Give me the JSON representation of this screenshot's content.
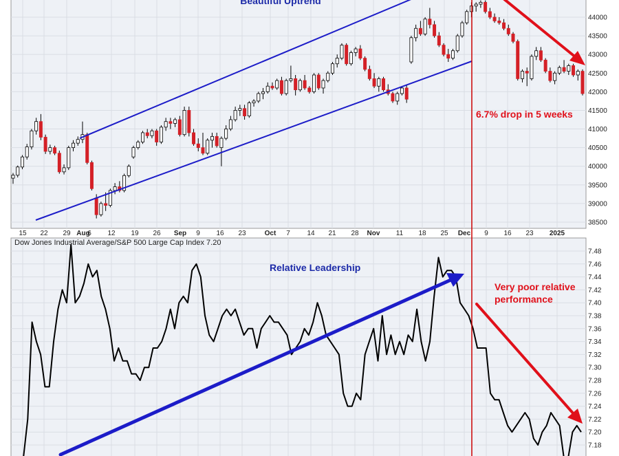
{
  "colors": {
    "up": "#ffffff",
    "down": "#d42027",
    "candle_outline": "#000000",
    "ratio_line": "#000000",
    "channel": "#1c1cc8",
    "annotation_blue": "#1c2aa8",
    "annotation_red": "#e0101a",
    "divider": "#cc0000",
    "grid": "#d9dde4",
    "panel_bg": "#eef1f6"
  },
  "chart_data": [
    {
      "type": "candlestick",
      "title": "",
      "x_tick_labels": [
        "15",
        "22",
        "29",
        "Aug",
        "6",
        "12",
        "19",
        "26",
        "Sep",
        "9",
        "16",
        "23",
        "Oct",
        "7",
        "14",
        "21",
        "28",
        "Nov",
        "11",
        "18",
        "25",
        "Dec",
        "9",
        "16",
        "23",
        "2025"
      ],
      "y_ticks": [
        38500,
        39000,
        39500,
        40000,
        40500,
        41000,
        41500,
        42000,
        42500,
        43000,
        43500,
        44000
      ],
      "ylim": [
        38300,
        44200
      ],
      "scale": "linear",
      "grid": true,
      "annotations": [
        "Beautiful Uptrend",
        "6.7% drop in 5 weeks"
      ],
      "series": [
        {
          "open": 39680,
          "high": 39820,
          "low": 39530,
          "close": 39760
        },
        {
          "open": 39760,
          "high": 40020,
          "low": 39700,
          "close": 39980
        },
        {
          "open": 39980,
          "high": 40300,
          "low": 39920,
          "close": 40250
        },
        {
          "open": 40250,
          "high": 40600,
          "low": 40180,
          "close": 40520
        },
        {
          "open": 40520,
          "high": 41000,
          "low": 40450,
          "close": 40950
        },
        {
          "open": 40950,
          "high": 41300,
          "low": 40850,
          "close": 41200
        },
        {
          "open": 41200,
          "high": 41400,
          "low": 40700,
          "close": 40780
        },
        {
          "open": 40780,
          "high": 40850,
          "low": 40330,
          "close": 40400
        },
        {
          "open": 40400,
          "high": 40580,
          "low": 40320,
          "close": 40500
        },
        {
          "open": 40500,
          "high": 40550,
          "low": 40300,
          "close": 40350
        },
        {
          "open": 40350,
          "high": 40420,
          "low": 39800,
          "close": 39850
        },
        {
          "open": 39850,
          "high": 40050,
          "low": 39780,
          "close": 39960
        },
        {
          "open": 39960,
          "high": 40550,
          "low": 39900,
          "close": 40500
        },
        {
          "open": 40500,
          "high": 40700,
          "low": 40400,
          "close": 40620
        },
        {
          "open": 40620,
          "high": 40800,
          "low": 40550,
          "close": 40720
        },
        {
          "open": 40720,
          "high": 41200,
          "low": 40620,
          "close": 40850
        },
        {
          "open": 40850,
          "high": 40900,
          "low": 40050,
          "close": 40100
        },
        {
          "open": 40100,
          "high": 40150,
          "low": 39350,
          "close": 39400
        },
        {
          "open": 39150,
          "high": 39250,
          "low": 38600,
          "close": 38700
        },
        {
          "open": 38700,
          "high": 39050,
          "low": 38650,
          "close": 39000
        },
        {
          "open": 39000,
          "high": 39300,
          "low": 38800,
          "close": 38950
        },
        {
          "open": 38950,
          "high": 39400,
          "low": 38900,
          "close": 39350
        },
        {
          "open": 39350,
          "high": 39550,
          "low": 39250,
          "close": 39450
        },
        {
          "open": 39450,
          "high": 39600,
          "low": 39300,
          "close": 39350
        },
        {
          "open": 39350,
          "high": 39800,
          "low": 39300,
          "close": 39750
        },
        {
          "open": 39750,
          "high": 40050,
          "low": 39700,
          "close": 40000
        },
        {
          "open": 40250,
          "high": 40550,
          "low": 40200,
          "close": 40500
        },
        {
          "open": 40500,
          "high": 40700,
          "low": 40450,
          "close": 40650
        },
        {
          "open": 40650,
          "high": 40950,
          "low": 40600,
          "close": 40900
        },
        {
          "open": 40900,
          "high": 41000,
          "low": 40750,
          "close": 40820
        },
        {
          "open": 40820,
          "high": 41000,
          "low": 40750,
          "close": 40950
        },
        {
          "open": 40950,
          "high": 41000,
          "low": 40550,
          "close": 40650
        },
        {
          "open": 40650,
          "high": 41100,
          "low": 40600,
          "close": 41050
        },
        {
          "open": 41050,
          "high": 41300,
          "low": 40950,
          "close": 41200
        },
        {
          "open": 41200,
          "high": 41300,
          "low": 41000,
          "close": 41150
        },
        {
          "open": 41150,
          "high": 41300,
          "low": 41050,
          "close": 41250
        },
        {
          "open": 41250,
          "high": 41350,
          "low": 40800,
          "close": 40850
        },
        {
          "open": 40850,
          "high": 41600,
          "low": 40800,
          "close": 41500
        },
        {
          "open": 41500,
          "high": 41600,
          "low": 40800,
          "close": 40900
        },
        {
          "open": 40900,
          "high": 41000,
          "low": 40550,
          "close": 40600
        },
        {
          "open": 40600,
          "high": 40750,
          "low": 40400,
          "close": 40500
        },
        {
          "open": 40500,
          "high": 40900,
          "low": 40300,
          "close": 40350
        },
        {
          "open": 40350,
          "high": 40750,
          "low": 40300,
          "close": 40700
        },
        {
          "open": 40700,
          "high": 40900,
          "low": 40500,
          "close": 40800
        },
        {
          "open": 40800,
          "high": 40900,
          "low": 40500,
          "close": 40550
        },
        {
          "open": 40500,
          "high": 40800,
          "low": 40000,
          "close": 40750
        },
        {
          "open": 40750,
          "high": 41100,
          "low": 40700,
          "close": 41000
        },
        {
          "open": 41000,
          "high": 41350,
          "low": 40950,
          "close": 41250
        },
        {
          "open": 41250,
          "high": 41600,
          "low": 41200,
          "close": 41500
        },
        {
          "open": 41500,
          "high": 41650,
          "low": 41350,
          "close": 41550
        },
        {
          "open": 41550,
          "high": 41650,
          "low": 41250,
          "close": 41350
        },
        {
          "open": 41350,
          "high": 41750,
          "low": 41300,
          "close": 41700
        },
        {
          "open": 41700,
          "high": 41800,
          "low": 41600,
          "close": 41750
        },
        {
          "open": 41750,
          "high": 42000,
          "low": 41700,
          "close": 41950
        },
        {
          "open": 41950,
          "high": 42100,
          "low": 41800,
          "close": 42000
        },
        {
          "open": 42000,
          "high": 42250,
          "low": 41950,
          "close": 42150
        },
        {
          "open": 42150,
          "high": 42250,
          "low": 42050,
          "close": 42100
        },
        {
          "open": 42100,
          "high": 42350,
          "low": 42050,
          "close": 42300
        },
        {
          "open": 42300,
          "high": 42400,
          "low": 41900,
          "close": 41950
        },
        {
          "open": 41950,
          "high": 42350,
          "low": 41900,
          "close": 42300
        },
        {
          "open": 42300,
          "high": 42700,
          "low": 42250,
          "close": 42350
        },
        {
          "open": 42350,
          "high": 42450,
          "low": 41900,
          "close": 42050
        },
        {
          "open": 42050,
          "high": 42350,
          "low": 42000,
          "close": 42300
        },
        {
          "open": 42300,
          "high": 42450,
          "low": 42050,
          "close": 42100
        },
        {
          "open": 42100,
          "high": 42150,
          "low": 41950,
          "close": 42000
        },
        {
          "open": 42000,
          "high": 42500,
          "low": 41950,
          "close": 42450
        },
        {
          "open": 42450,
          "high": 42500,
          "low": 42050,
          "close": 42100
        },
        {
          "open": 42100,
          "high": 42350,
          "low": 41950,
          "close": 42300
        },
        {
          "open": 42300,
          "high": 42550,
          "low": 42250,
          "close": 42500
        },
        {
          "open": 42500,
          "high": 42800,
          "low": 42450,
          "close": 42750
        },
        {
          "open": 42750,
          "high": 43000,
          "low": 42650,
          "close": 42900
        },
        {
          "open": 42900,
          "high": 43300,
          "low": 42850,
          "close": 43250
        },
        {
          "open": 43250,
          "high": 43300,
          "low": 42700,
          "close": 42750
        },
        {
          "open": 42750,
          "high": 43100,
          "low": 42700,
          "close": 43050
        },
        {
          "open": 43050,
          "high": 43200,
          "low": 42950,
          "close": 43150
        },
        {
          "open": 43150,
          "high": 43250,
          "low": 42850,
          "close": 42900
        },
        {
          "open": 42900,
          "high": 42950,
          "low": 42550,
          "close": 42600
        },
        {
          "open": 42600,
          "high": 42700,
          "low": 42300,
          "close": 42350
        },
        {
          "open": 42350,
          "high": 42500,
          "low": 42100,
          "close": 42150
        },
        {
          "open": 42150,
          "high": 42400,
          "low": 42000,
          "close": 42350
        },
        {
          "open": 42350,
          "high": 42400,
          "low": 42000,
          "close": 42050
        },
        {
          "open": 42050,
          "high": 42200,
          "low": 41900,
          "close": 41950
        },
        {
          "open": 41950,
          "high": 42000,
          "low": 41700,
          "close": 41750
        },
        {
          "open": 41750,
          "high": 42000,
          "low": 41650,
          "close": 41950
        },
        {
          "open": 41950,
          "high": 42150,
          "low": 41900,
          "close": 42100
        },
        {
          "open": 42100,
          "high": 42200,
          "low": 41700,
          "close": 41800
        },
        {
          "open": 42800,
          "high": 43500,
          "low": 42750,
          "close": 43450
        },
        {
          "open": 43450,
          "high": 43800,
          "low": 43350,
          "close": 43700
        },
        {
          "open": 43700,
          "high": 43900,
          "low": 43500,
          "close": 43550
        },
        {
          "open": 43550,
          "high": 44000,
          "low": 43500,
          "close": 43950
        },
        {
          "open": 43950,
          "high": 44250,
          "low": 43700,
          "close": 43800
        },
        {
          "open": 43800,
          "high": 43900,
          "low": 43450,
          "close": 43500
        },
        {
          "open": 43500,
          "high": 43600,
          "low": 43200,
          "close": 43250
        },
        {
          "open": 43250,
          "high": 43300,
          "low": 42950,
          "close": 43000
        },
        {
          "open": 43000,
          "high": 43150,
          "low": 42800,
          "close": 42900
        },
        {
          "open": 42900,
          "high": 43150,
          "low": 42850,
          "close": 43100
        },
        {
          "open": 43100,
          "high": 43550,
          "low": 43050,
          "close": 43500
        },
        {
          "open": 43500,
          "high": 43900,
          "low": 43450,
          "close": 43850
        },
        {
          "open": 43850,
          "high": 44200,
          "low": 43800,
          "close": 44150
        },
        {
          "open": 44150,
          "high": 44400,
          "low": 44000,
          "close": 44300
        },
        {
          "open": 44300,
          "high": 44400,
          "low": 44150,
          "close": 44350
        },
        {
          "open": 44350,
          "high": 44450,
          "low": 44250,
          "close": 44400
        },
        {
          "open": 44400,
          "high": 44450,
          "low": 44100,
          "close": 44150
        },
        {
          "open": 44150,
          "high": 44250,
          "low": 43950,
          "close": 44000
        },
        {
          "open": 44000,
          "high": 44100,
          "low": 43850,
          "close": 43900
        },
        {
          "open": 43900,
          "high": 44000,
          "low": 43800,
          "close": 43850
        },
        {
          "open": 43850,
          "high": 43950,
          "low": 43650,
          "close": 43700
        },
        {
          "open": 43700,
          "high": 43800,
          "low": 43500,
          "close": 43550
        },
        {
          "open": 43550,
          "high": 43600,
          "low": 43300,
          "close": 43350
        },
        {
          "open": 43350,
          "high": 43400,
          "low": 42300,
          "close": 42350
        },
        {
          "open": 42350,
          "high": 42600,
          "low": 42250,
          "close": 42550
        },
        {
          "open": 42550,
          "high": 42650,
          "low": 42150,
          "close": 42500
        },
        {
          "open": 42350,
          "high": 43000,
          "low": 42300,
          "close": 42950
        },
        {
          "open": 42950,
          "high": 43200,
          "low": 42850,
          "close": 43100
        },
        {
          "open": 43100,
          "high": 43200,
          "low": 42800,
          "close": 42850
        },
        {
          "open": 42850,
          "high": 42900,
          "low": 42500,
          "close": 42550
        },
        {
          "open": 42550,
          "high": 42650,
          "low": 42250,
          "close": 42300
        },
        {
          "open": 42300,
          "high": 42550,
          "low": 42200,
          "close": 42500
        },
        {
          "open": 42500,
          "high": 42700,
          "low": 42450,
          "close": 42650
        },
        {
          "open": 42650,
          "high": 42850,
          "low": 42500,
          "close": 42550
        },
        {
          "open": 42550,
          "high": 42750,
          "low": 42450,
          "close": 42700
        },
        {
          "open": 42700,
          "high": 42750,
          "low": 42400,
          "close": 42450
        },
        {
          "open": 42450,
          "high": 42600,
          "low": 42300,
          "close": 42550
        },
        {
          "open": 42550,
          "high": 42600,
          "low": 41900,
          "close": 41950
        }
      ]
    },
    {
      "type": "line",
      "title": "Dow Jones Industrial Average/S&P 500 Large Cap Index 7.20",
      "y_ticks": [
        7.18,
        7.2,
        7.22,
        7.24,
        7.26,
        7.28,
        7.3,
        7.32,
        7.34,
        7.36,
        7.38,
        7.4,
        7.42,
        7.44,
        7.46,
        7.48
      ],
      "ylim": [
        7.165,
        7.495
      ],
      "grid": true,
      "annotations": [
        "Relative Leadership",
        "Very poor relative performance"
      ],
      "series": [
        {
          "values": [
            7.16,
            7.22,
            7.37,
            7.34,
            7.32,
            7.27,
            7.27,
            7.34,
            7.39,
            7.42,
            7.4,
            7.49,
            7.4,
            7.41,
            7.43,
            7.46,
            7.44,
            7.45,
            7.41,
            7.39,
            7.36,
            7.31,
            7.33,
            7.31,
            7.31,
            7.29,
            7.29,
            7.28,
            7.3,
            7.3,
            7.33,
            7.33,
            7.34,
            7.36,
            7.39,
            7.36,
            7.4,
            7.41,
            7.4,
            7.45,
            7.46,
            7.44,
            7.38,
            7.35,
            7.34,
            7.36,
            7.38,
            7.39,
            7.38,
            7.39,
            7.37,
            7.35,
            7.36,
            7.36,
            7.33,
            7.36,
            7.37,
            7.38,
            7.37,
            7.37,
            7.36,
            7.35,
            7.32,
            7.33,
            7.34,
            7.36,
            7.35,
            7.37,
            7.4,
            7.38,
            7.35,
            7.34,
            7.33,
            7.32,
            7.26,
            7.24,
            7.24,
            7.26,
            7.25,
            7.32,
            7.34,
            7.36,
            7.31,
            7.38,
            7.32,
            7.35,
            7.32,
            7.34,
            7.32,
            7.35,
            7.34,
            7.39,
            7.34,
            7.31,
            7.34,
            7.41,
            7.47,
            7.44,
            7.45,
            7.45,
            7.44,
            7.4,
            7.39,
            7.38,
            7.36,
            7.33,
            7.33,
            7.33,
            7.26,
            7.25,
            7.25,
            7.23,
            7.21,
            7.2,
            7.21,
            7.22,
            7.23,
            7.22,
            7.19,
            7.18,
            7.2,
            7.21,
            7.23,
            7.22,
            7.21,
            7.16,
            7.16,
            7.2,
            7.21,
            7.2
          ]
        }
      ]
    }
  ]
}
